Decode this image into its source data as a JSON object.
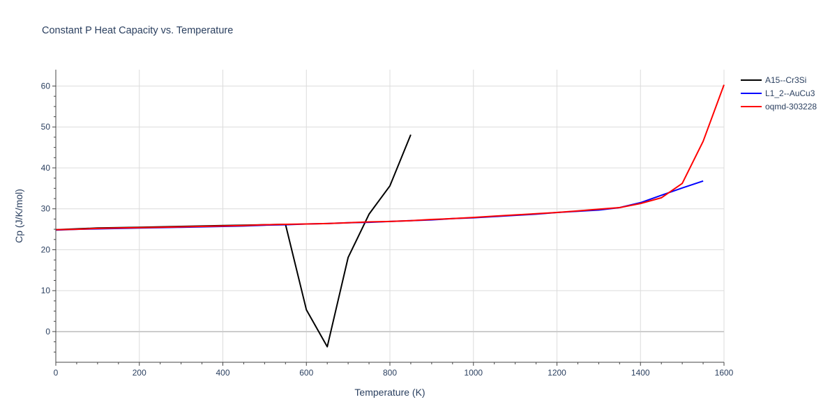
{
  "chart_data": {
    "type": "line",
    "title": "Constant P Heat Capacity vs. Temperature",
    "xlabel": "Temperature (K)",
    "ylabel": "Cp (J/K/mol)",
    "xlim": [
      0,
      1600
    ],
    "ylim": [
      -7.5,
      64
    ],
    "x_ticks": [
      0,
      200,
      400,
      600,
      800,
      1000,
      1200,
      1400,
      1600
    ],
    "y_ticks": [
      0,
      10,
      20,
      30,
      40,
      50,
      60
    ],
    "grid": true,
    "legend_position": "top-right",
    "series": [
      {
        "name": "A15--Cr3Si",
        "color": "#000000",
        "x": [
          0,
          50,
          100,
          150,
          200,
          250,
          300,
          350,
          400,
          450,
          500,
          550,
          600,
          650,
          700,
          750,
          800,
          850
        ],
        "y": [
          24.9,
          25.1,
          25.3,
          25.4,
          25.5,
          25.6,
          25.7,
          25.8,
          25.9,
          26.0,
          26.1,
          26.2,
          5.3,
          -3.7,
          18.1,
          28.7,
          35.6,
          48.1
        ]
      },
      {
        "name": "L1_2--AuCu3",
        "color": "#0000ff",
        "x": [
          0,
          50,
          100,
          150,
          200,
          250,
          300,
          350,
          400,
          450,
          500,
          550,
          600,
          650,
          700,
          750,
          800,
          850,
          900,
          950,
          1000,
          1050,
          1100,
          1150,
          1200,
          1250,
          1300,
          1350,
          1400,
          1450,
          1500,
          1550
        ],
        "y": [
          24.8,
          25.0,
          25.1,
          25.2,
          25.3,
          25.4,
          25.5,
          25.6,
          25.7,
          25.8,
          26.0,
          26.1,
          26.3,
          26.4,
          26.6,
          26.7,
          26.9,
          27.1,
          27.3,
          27.6,
          27.8,
          28.1,
          28.4,
          28.7,
          29.1,
          29.4,
          29.7,
          30.3,
          31.5,
          33.3,
          35.1,
          36.8
        ]
      },
      {
        "name": "oqmd-303228",
        "color": "#ff0000",
        "x": [
          0,
          50,
          100,
          150,
          200,
          250,
          300,
          350,
          400,
          450,
          500,
          550,
          600,
          650,
          700,
          750,
          800,
          850,
          900,
          950,
          1000,
          1050,
          1100,
          1150,
          1200,
          1250,
          1300,
          1350,
          1400,
          1450,
          1500,
          1550,
          1600
        ],
        "y": [
          24.9,
          25.0,
          25.2,
          25.3,
          25.4,
          25.5,
          25.6,
          25.7,
          25.8,
          25.9,
          26.1,
          26.2,
          26.3,
          26.4,
          26.6,
          26.8,
          26.9,
          27.1,
          27.4,
          27.6,
          27.9,
          28.2,
          28.5,
          28.8,
          29.1,
          29.5,
          29.9,
          30.3,
          31.3,
          32.7,
          36.2,
          46.5,
          60.3
        ]
      }
    ]
  }
}
